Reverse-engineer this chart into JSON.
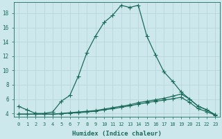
{
  "xlabel": "Humidex (Indice chaleur)",
  "xlim": [
    -0.5,
    23.5
  ],
  "ylim": [
    3.5,
    19.5
  ],
  "xticks": [
    0,
    1,
    2,
    3,
    4,
    5,
    6,
    7,
    8,
    9,
    10,
    11,
    12,
    13,
    14,
    15,
    16,
    17,
    18,
    19,
    20,
    21,
    22,
    23
  ],
  "yticks": [
    4,
    6,
    8,
    10,
    12,
    14,
    16,
    18
  ],
  "bg_color": "#cde8ec",
  "line_color": "#1a6b5a",
  "grid_color": "#b8d5da",
  "line1_x": [
    0,
    1,
    2,
    3,
    4,
    5,
    6,
    7,
    8,
    9,
    10,
    11,
    12,
    13,
    14,
    15,
    16,
    17,
    18,
    19,
    20,
    21,
    22,
    23
  ],
  "line1_y": [
    5.0,
    4.5,
    4.0,
    4.0,
    4.2,
    5.7,
    6.5,
    9.2,
    12.5,
    14.8,
    16.7,
    17.7,
    19.1,
    18.8,
    19.1,
    14.8,
    12.2,
    9.8,
    8.5,
    7.0,
    6.0,
    5.0,
    4.5,
    3.8
  ],
  "line2_x": [
    0,
    1,
    2,
    3,
    4,
    5,
    6,
    7,
    8,
    9,
    10,
    11,
    12,
    13,
    14,
    15,
    16,
    17,
    18,
    19,
    20,
    21,
    22,
    23
  ],
  "line2_y": [
    3.9,
    3.9,
    3.9,
    3.9,
    3.9,
    4.0,
    4.1,
    4.2,
    4.3,
    4.4,
    4.6,
    4.8,
    5.0,
    5.2,
    5.5,
    5.7,
    5.9,
    6.1,
    6.4,
    6.7,
    6.0,
    5.0,
    4.5,
    3.8
  ],
  "line3_x": [
    0,
    1,
    2,
    3,
    4,
    5,
    6,
    7,
    8,
    9,
    10,
    11,
    12,
    13,
    14,
    15,
    16,
    17,
    18,
    19,
    20,
    21,
    22,
    23
  ],
  "line3_y": [
    3.9,
    3.9,
    3.9,
    3.9,
    3.9,
    3.95,
    4.05,
    4.1,
    4.2,
    4.3,
    4.5,
    4.65,
    4.85,
    5.05,
    5.3,
    5.5,
    5.7,
    5.85,
    6.05,
    6.25,
    5.55,
    4.65,
    4.25,
    3.75
  ],
  "marker": "+",
  "marker_size": 4,
  "linewidth": 0.9
}
